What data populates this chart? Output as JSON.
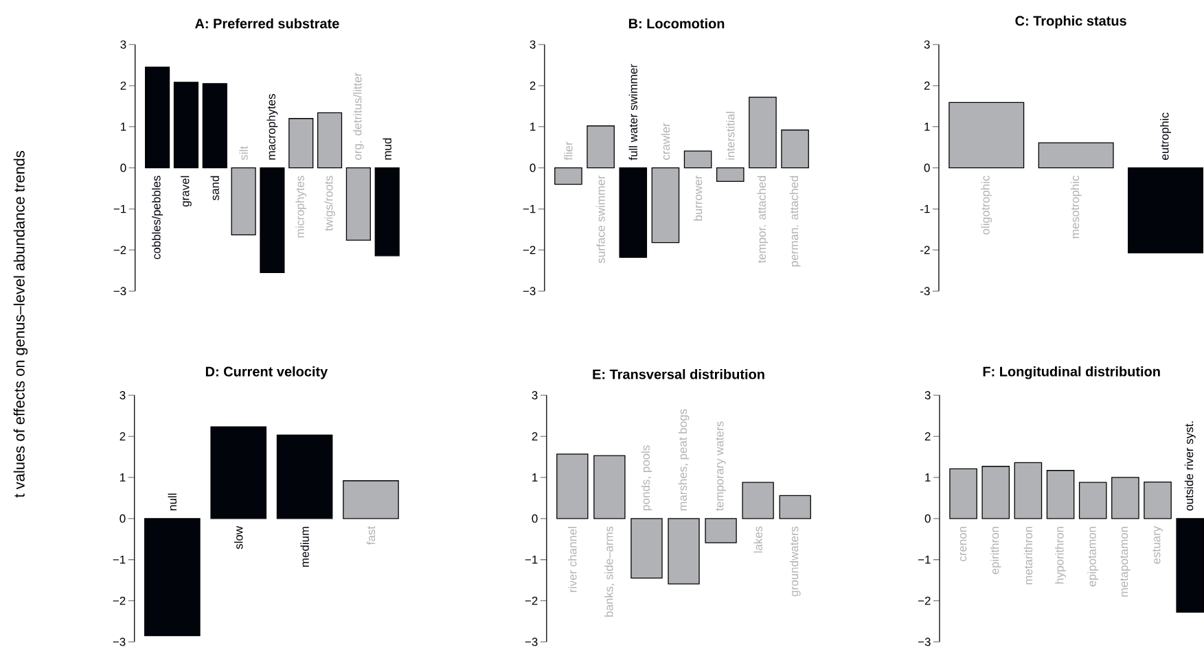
{
  "chart_data": [
    {
      "type": "bar",
      "title": "A: Preferred substrate",
      "ylabel": "t values of effects on genus–level abundance trends",
      "categories": [
        "cobbles/pebbles",
        "gravel",
        "sand",
        "silt",
        "macrophytes",
        "microphytes",
        "twigs/roots",
        "org. detritus/litter",
        "mud"
      ],
      "values": [
        2.45,
        2.08,
        2.05,
        -1.63,
        -2.55,
        1.2,
        1.34,
        -1.76,
        -2.14
      ],
      "colors": [
        "#02040c",
        "#02040c",
        "#02040c",
        "#b0b2b5",
        "#02040c",
        "#b0b2b5",
        "#b0b2b5",
        "#b0b2b5",
        "#02040c"
      ],
      "ylim": [
        -3,
        3
      ],
      "yticks": [
        {
          "value": -3,
          "label": "−3"
        },
        {
          "value": -2,
          "label": "−2"
        },
        {
          "value": -1,
          "label": "−1"
        },
        0,
        1,
        2,
        3
      ]
    },
    {
      "type": "bar",
      "title": "B: Locomotion",
      "categories": [
        "flier",
        "surface swimmer",
        "full water swimmer",
        "crawler",
        "burrower",
        "interstitial",
        "tempor. attached",
        "perman. attached"
      ],
      "values": [
        -0.4,
        1.02,
        -2.18,
        -1.82,
        0.41,
        -0.33,
        1.72,
        0.92
      ],
      "colors": [
        "#b0b2b5",
        "#b0b2b5",
        "#02040c",
        "#b0b2b5",
        "#b0b2b5",
        "#b0b2b5",
        "#b0b2b5",
        "#b0b2b5"
      ],
      "ylim": [
        -3,
        3
      ],
      "yticks": [
        {
          "value": -3,
          "label": "−3"
        },
        {
          "value": -2,
          "label": "−2"
        },
        {
          "value": -1,
          "label": "−1"
        },
        0,
        1,
        2,
        3
      ]
    },
    {
      "type": "bar",
      "title": "C: Trophic status",
      "categories": [
        "oligotrophic",
        "mesotrophic",
        "eutrophic"
      ],
      "values": [
        1.59,
        0.61,
        -2.07
      ],
      "colors": [
        "#b0b2b5",
        "#b0b2b5",
        "#02040c"
      ],
      "ylim": [
        -3,
        3
      ],
      "yticks": [
        -3,
        -2,
        -1,
        0,
        1,
        2,
        3
      ]
    },
    {
      "type": "bar",
      "title": "D: Current velocity",
      "categories": [
        "null",
        "slow",
        "medium",
        "fast"
      ],
      "values": [
        -2.85,
        2.23,
        2.03,
        0.92
      ],
      "colors": [
        "#02040c",
        "#02040c",
        "#02040c",
        "#b0b2b5"
      ],
      "ylim": [
        -3,
        3
      ],
      "yticks": [
        {
          "value": -3,
          "label": "−3"
        },
        {
          "value": -2,
          "label": "−2"
        },
        {
          "value": -1,
          "label": "−1"
        },
        0,
        1,
        2,
        3
      ]
    },
    {
      "type": "bar",
      "title": "E: Transversal distribution",
      "categories": [
        "river channel",
        "banks, side–arms",
        "ponds, pools",
        "marshes, peat bogs",
        "temporary waters",
        "lakes",
        "groundwaters"
      ],
      "values": [
        1.57,
        1.53,
        -1.45,
        -1.59,
        -0.59,
        0.88,
        0.56
      ],
      "colors": [
        "#b0b2b5",
        "#b0b2b5",
        "#b0b2b5",
        "#b0b2b5",
        "#b0b2b5",
        "#b0b2b5",
        "#b0b2b5"
      ],
      "ylim": [
        -3,
        3
      ],
      "yticks": [
        {
          "value": -3,
          "label": "−3"
        },
        {
          "value": -2,
          "label": "−2"
        },
        {
          "value": -1,
          "label": "−1"
        },
        0,
        1,
        2,
        3
      ]
    },
    {
      "type": "bar",
      "title": "F: Longitudinal distribution",
      "categories": [
        "crenon",
        "epirithron",
        "metarithron",
        "hyporithron",
        "epipotamon",
        "metapotamon",
        "estuary",
        "outside river syst."
      ],
      "values": [
        1.21,
        1.27,
        1.36,
        1.17,
        0.88,
        1.0,
        0.89,
        -2.28
      ],
      "colors": [
        "#b0b2b5",
        "#b0b2b5",
        "#b0b2b5",
        "#b0b2b5",
        "#b0b2b5",
        "#b0b2b5",
        "#b0b2b5",
        "#02040c"
      ],
      "ylim": [
        -3,
        3
      ],
      "yticks": [
        {
          "value": -3,
          "label": "−3"
        },
        {
          "value": -2,
          "label": "−2"
        },
        {
          "value": -1,
          "label": "−1"
        },
        0,
        1,
        2,
        3
      ]
    }
  ]
}
